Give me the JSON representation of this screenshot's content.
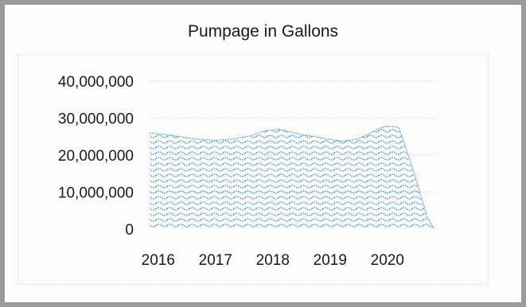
{
  "chart_data": {
    "type": "area",
    "title": "Pumpage in Gallons",
    "xlabel": "",
    "ylabel": "",
    "x": [
      2015.95,
      2016.25,
      2016.55,
      2016.85,
      2017.1,
      2017.4,
      2017.7,
      2017.95,
      2018.2,
      2018.4,
      2018.65,
      2018.85,
      2019.05,
      2019.3,
      2019.55,
      2019.75,
      2019.95,
      2020.1,
      2020.3,
      2020.55,
      2020.8,
      2020.92
    ],
    "series": [
      {
        "values": [
          26000000,
          25500000,
          24800000,
          24200000,
          24000000,
          24300000,
          25200000,
          26500000,
          27000000,
          26300000,
          25400000,
          25000000,
          24300000,
          23800000,
          24200000,
          25500000,
          27200000,
          27800000,
          27500000,
          16000000,
          3000000,
          0
        ]
      }
    ],
    "yticks": [
      "0",
      "10,000,000",
      "20,000,000",
      "30,000,000",
      "40,000,000"
    ],
    "xticks": [
      "2016",
      "2017",
      "2018",
      "2019",
      "2020"
    ],
    "ylim": [
      0,
      40000000
    ],
    "xlim": [
      2015.95,
      2020.95
    ],
    "grid": true,
    "fill_color": "#3b8fd6"
  }
}
